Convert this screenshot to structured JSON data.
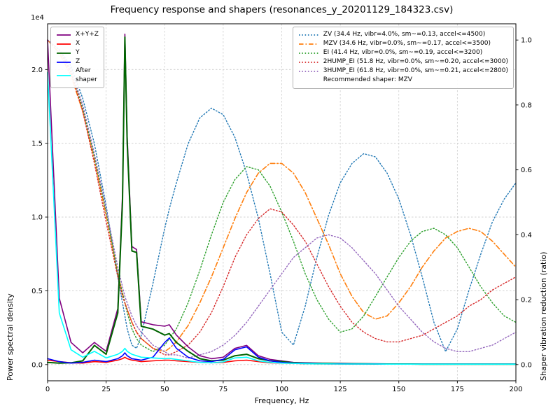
{
  "title": "Frequency response and shapers (resonances_y_20201129_184323.csv)",
  "axes": {
    "x": {
      "label": "Frequency, Hz",
      "range": [
        0,
        200
      ],
      "ticks": [
        0,
        25,
        50,
        75,
        100,
        125,
        150,
        175,
        200
      ]
    },
    "y_left": {
      "label": "Power spectral density",
      "offset": "1e4",
      "range": [
        -1100,
        23100
      ],
      "ticks": [
        0,
        5000,
        10000,
        15000,
        20000
      ],
      "tick_labels": [
        "0.0",
        "0.5",
        "1.0",
        "1.5",
        "2.0"
      ]
    },
    "y_right": {
      "label": "Shaper vibration reduction (ratio)",
      "range": [
        -0.05,
        1.05
      ],
      "ticks": [
        0,
        0.2,
        0.4,
        0.6,
        0.8,
        1.0
      ],
      "tick_labels": [
        "0.0",
        "0.2",
        "0.4",
        "0.6",
        "0.8",
        "1.0"
      ]
    }
  },
  "legend_psd": {
    "items": [
      {
        "label": "X+Y+Z",
        "color": "#800080",
        "dash": "solid"
      },
      {
        "label": "X",
        "color": "#ff0000",
        "dash": "solid"
      },
      {
        "label": "Y",
        "color": "#006400",
        "dash": "solid"
      },
      {
        "label": "Z",
        "color": "#0000ff",
        "dash": "solid"
      },
      {
        "label": "After\nshaper",
        "color": "#00ffff",
        "dash": "solid"
      }
    ]
  },
  "legend_shapers": {
    "items": [
      {
        "label": "ZV (34.4 Hz, vibr=4.0%, sm~=0.13, accel<=4500)",
        "color": "#1f77b4",
        "dash": "dotted"
      },
      {
        "label": "MZV (34.6 Hz, vibr=0.0%, sm~=0.17, accel<=3500)",
        "color": "#ff7f0e",
        "dash": "dashdot"
      },
      {
        "label": "EI (41.4 Hz, vibr=0.0%, sm~=0.19, accel<=3200)",
        "color": "#2ca02c",
        "dash": "dotted"
      },
      {
        "label": "2HUMP_EI (51.8 Hz, vibr=0.0%, sm~=0.20, accel<=3000)",
        "color": "#d62728",
        "dash": "dotted"
      },
      {
        "label": "3HUMP_EI (61.8 Hz, vibr=0.0%, sm~=0.21, accel<=2800)",
        "color": "#9467bd",
        "dash": "dotted"
      }
    ],
    "note": "Recommended shaper: MZV"
  },
  "chart_data": {
    "type": "line",
    "title": "Frequency response and shapers (resonances_y_20201129_184323.csv)",
    "xlabel": "Frequency, Hz",
    "ylabel_left": "Power spectral density",
    "ylabel_right": "Shaper vibration reduction (ratio)",
    "xlim": [
      0,
      200
    ],
    "ylim_left": [
      -1100,
      23100
    ],
    "ylim_right": [
      -0.05,
      1.05
    ],
    "grid": true,
    "x": [
      0,
      5,
      10,
      15,
      20,
      25,
      30,
      32,
      33,
      34,
      36,
      38,
      40,
      45,
      50,
      52,
      55,
      60,
      65,
      70,
      75,
      80,
      85,
      90,
      95,
      100,
      105,
      110,
      115,
      120,
      125,
      130,
      135,
      140,
      145,
      150,
      155,
      160,
      165,
      170,
      175,
      180,
      185,
      190,
      195,
      200
    ],
    "series": [
      {
        "name": "X+Y+Z",
        "axis": "left",
        "color": "#800080",
        "dash": "solid",
        "width": 1.6,
        "values": [
          22000,
          4500,
          1500,
          800,
          1500,
          900,
          3800,
          11500,
          22400,
          15500,
          8000,
          7800,
          2900,
          2700,
          2600,
          2700,
          2000,
          1200,
          600,
          400,
          500,
          1100,
          1300,
          600,
          350,
          250,
          150,
          120,
          100,
          90,
          80,
          70,
          60,
          60,
          50,
          50,
          50,
          40,
          40,
          40,
          40,
          40,
          40,
          40,
          40,
          40
        ]
      },
      {
        "name": "X",
        "axis": "left",
        "color": "#ff0000",
        "dash": "solid",
        "width": 1.6,
        "values": [
          300,
          200,
          120,
          100,
          200,
          150,
          300,
          400,
          500,
          400,
          300,
          250,
          200,
          250,
          300,
          300,
          250,
          200,
          150,
          120,
          150,
          250,
          300,
          200,
          120,
          100,
          80,
          60,
          50,
          50,
          40,
          40,
          40,
          40,
          30,
          30,
          30,
          30,
          30,
          30,
          30,
          30,
          30,
          30,
          30,
          30
        ]
      },
      {
        "name": "Y",
        "axis": "left",
        "color": "#006400",
        "dash": "solid",
        "width": 2,
        "values": [
          150,
          100,
          120,
          250,
          1300,
          700,
          3500,
          11000,
          22200,
          15000,
          7700,
          7600,
          2600,
          2400,
          2000,
          2100,
          1500,
          900,
          400,
          250,
          300,
          600,
          700,
          400,
          250,
          200,
          120,
          100,
          80,
          70,
          60,
          50,
          50,
          40,
          40,
          40,
          40,
          30,
          30,
          30,
          30,
          30,
          30,
          30,
          30,
          30
        ]
      },
      {
        "name": "Z",
        "axis": "left",
        "color": "#0000ff",
        "dash": "solid",
        "width": 1.6,
        "values": [
          400,
          200,
          100,
          150,
          300,
          200,
          400,
          600,
          800,
          600,
          400,
          350,
          300,
          500,
          1500,
          1800,
          1100,
          500,
          250,
          200,
          350,
          1000,
          1200,
          500,
          250,
          150,
          100,
          80,
          60,
          50,
          50,
          40,
          40,
          40,
          30,
          30,
          30,
          30,
          30,
          30,
          30,
          30,
          30,
          30,
          30,
          30
        ]
      },
      {
        "name": "After shaper",
        "axis": "left",
        "color": "#00ffff",
        "dash": "solid",
        "width": 1.6,
        "values": [
          19800,
          3500,
          1000,
          500,
          900,
          450,
          700,
          900,
          1100,
          900,
          700,
          600,
          500,
          450,
          400,
          420,
          350,
          250,
          150,
          120,
          180,
          450,
          500,
          250,
          150,
          100,
          80,
          60,
          50,
          50,
          40,
          40,
          40,
          40,
          30,
          30,
          30,
          30,
          30,
          30,
          30,
          30,
          30,
          30,
          30,
          30
        ]
      },
      {
        "name": "ZV",
        "axis": "right",
        "color": "#1f77b4",
        "dash": "dotted",
        "width": 1.4,
        "values": [
          1.0,
          0.97,
          0.92,
          0.82,
          0.68,
          0.49,
          0.27,
          0.19,
          0.15,
          0.11,
          0.06,
          0.05,
          0.09,
          0.25,
          0.42,
          0.48,
          0.56,
          0.68,
          0.76,
          0.79,
          0.77,
          0.7,
          0.59,
          0.45,
          0.28,
          0.1,
          0.06,
          0.18,
          0.33,
          0.46,
          0.56,
          0.62,
          0.65,
          0.64,
          0.59,
          0.51,
          0.4,
          0.27,
          0.13,
          0.04,
          0.11,
          0.23,
          0.34,
          0.44,
          0.51,
          0.56
        ]
      },
      {
        "name": "MZV",
        "axis": "right",
        "color": "#ff7f0e",
        "dash": "dashdot",
        "width": 1.6,
        "values": [
          1.0,
          0.96,
          0.89,
          0.78,
          0.63,
          0.46,
          0.28,
          0.22,
          0.19,
          0.17,
          0.13,
          0.1,
          0.08,
          0.05,
          0.04,
          0.05,
          0.07,
          0.12,
          0.19,
          0.27,
          0.36,
          0.45,
          0.53,
          0.59,
          0.62,
          0.62,
          0.59,
          0.53,
          0.45,
          0.37,
          0.28,
          0.21,
          0.16,
          0.14,
          0.15,
          0.19,
          0.24,
          0.3,
          0.35,
          0.39,
          0.41,
          0.42,
          0.41,
          0.38,
          0.34,
          0.3
        ]
      },
      {
        "name": "EI",
        "axis": "right",
        "color": "#2ca02c",
        "dash": "dotted",
        "width": 1.4,
        "values": [
          1.0,
          0.97,
          0.9,
          0.79,
          0.64,
          0.47,
          0.28,
          0.22,
          0.19,
          0.16,
          0.11,
          0.08,
          0.06,
          0.04,
          0.06,
          0.08,
          0.11,
          0.19,
          0.29,
          0.4,
          0.5,
          0.57,
          0.61,
          0.6,
          0.55,
          0.47,
          0.38,
          0.28,
          0.2,
          0.14,
          0.1,
          0.11,
          0.15,
          0.21,
          0.27,
          0.33,
          0.38,
          0.41,
          0.42,
          0.4,
          0.36,
          0.3,
          0.24,
          0.19,
          0.15,
          0.13
        ]
      },
      {
        "name": "2HUMP_EI",
        "axis": "right",
        "color": "#d62728",
        "dash": "dotted",
        "width": 1.4,
        "values": [
          1.0,
          0.97,
          0.9,
          0.78,
          0.62,
          0.44,
          0.27,
          0.21,
          0.19,
          0.17,
          0.13,
          0.1,
          0.08,
          0.05,
          0.03,
          0.03,
          0.04,
          0.06,
          0.1,
          0.16,
          0.24,
          0.33,
          0.4,
          0.45,
          0.48,
          0.47,
          0.43,
          0.38,
          0.31,
          0.24,
          0.18,
          0.13,
          0.1,
          0.08,
          0.07,
          0.07,
          0.08,
          0.09,
          0.11,
          0.13,
          0.15,
          0.18,
          0.2,
          0.23,
          0.25,
          0.27
        ]
      },
      {
        "name": "3HUMP_EI",
        "axis": "right",
        "color": "#9467bd",
        "dash": "dotted",
        "width": 1.4,
        "values": [
          1.0,
          0.97,
          0.91,
          0.8,
          0.65,
          0.48,
          0.3,
          0.24,
          0.21,
          0.19,
          0.15,
          0.12,
          0.1,
          0.06,
          0.04,
          0.03,
          0.03,
          0.02,
          0.03,
          0.04,
          0.06,
          0.09,
          0.13,
          0.18,
          0.23,
          0.28,
          0.33,
          0.36,
          0.39,
          0.4,
          0.39,
          0.36,
          0.32,
          0.28,
          0.23,
          0.18,
          0.14,
          0.1,
          0.07,
          0.05,
          0.04,
          0.04,
          0.05,
          0.06,
          0.08,
          0.1
        ]
      }
    ]
  }
}
